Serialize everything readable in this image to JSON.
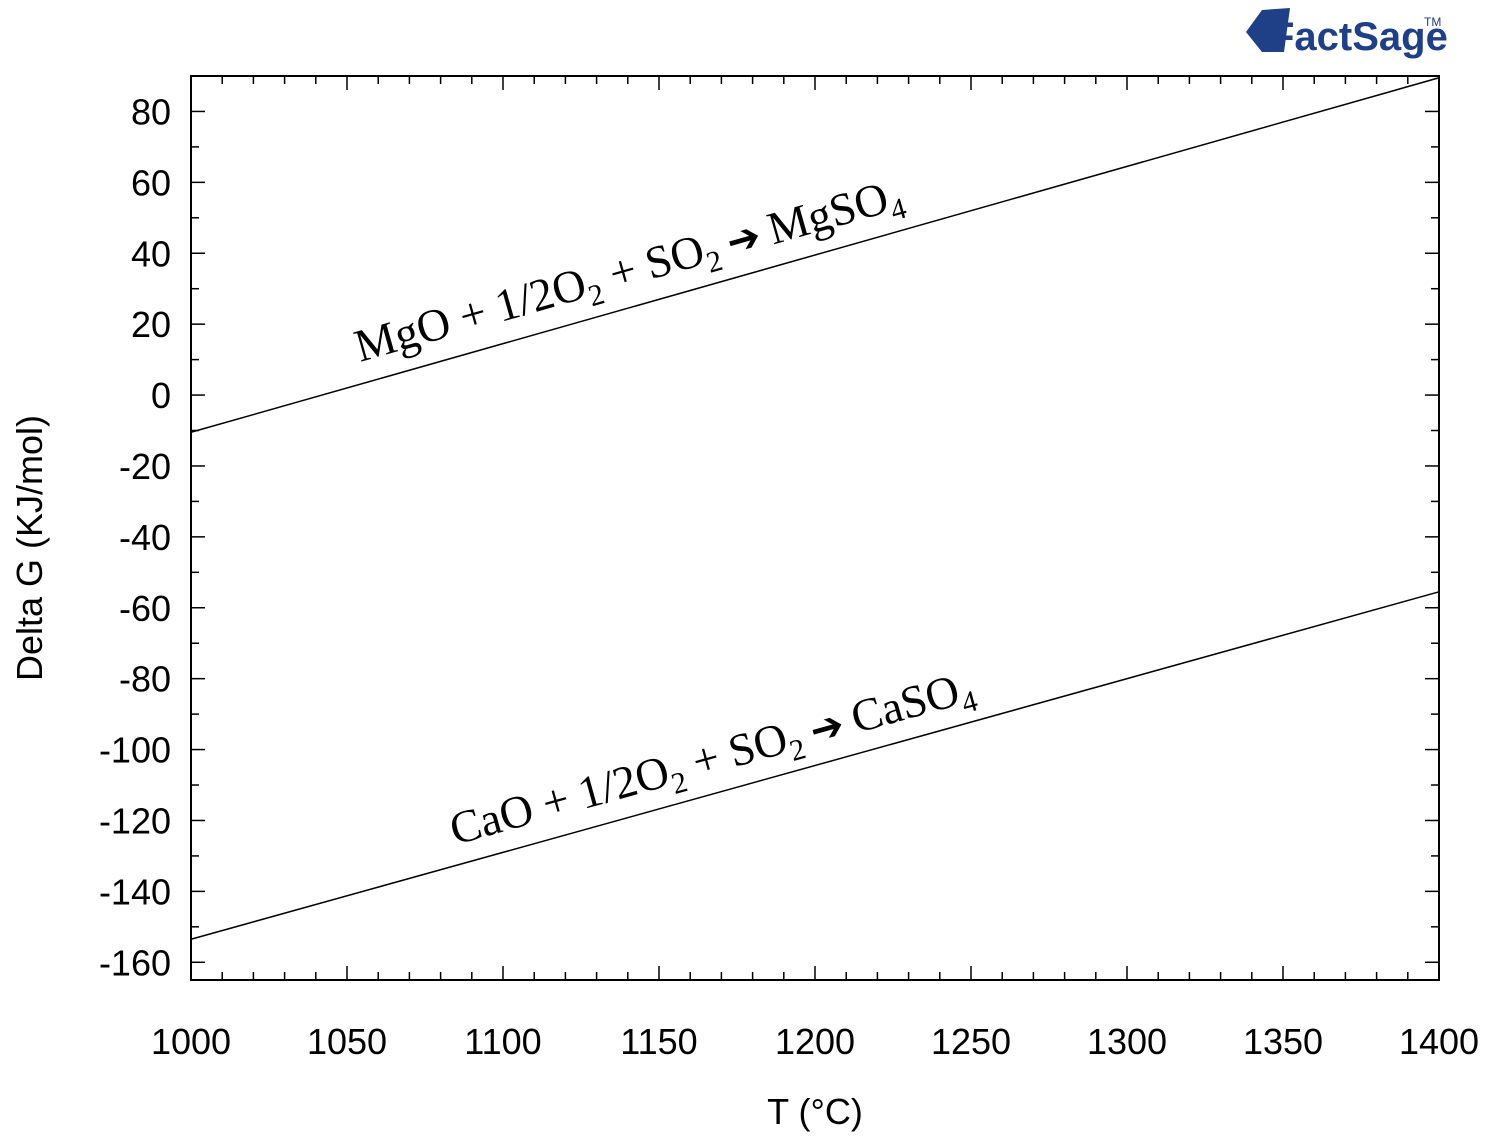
{
  "chart_data": {
    "type": "line",
    "xlabel": "T (°C)",
    "ylabel": "Delta G (KJ/mol)",
    "xlim": [
      1000,
      1400
    ],
    "ylim": [
      -165,
      90
    ],
    "xticks": [
      1000,
      1050,
      1100,
      1150,
      1200,
      1250,
      1300,
      1350,
      1400
    ],
    "yticks": [
      80,
      60,
      40,
      20,
      0,
      -20,
      -40,
      -60,
      -80,
      -100,
      -120,
      -140,
      -160
    ],
    "grid": false,
    "series": [
      {
        "name": "MgO + 1/2O2 + SO2 ➔ MgSO4",
        "x": [
          1000,
          1400
        ],
        "y": [
          -10.5,
          89.5
        ],
        "label": {
          "main": "MgO + 1/2O",
          "sub1": "2",
          "mid": " + SO",
          "sub2": "2",
          "arrow": "➔",
          "product": "MgSO",
          "sub3": "4"
        }
      },
      {
        "name": "CaO + 1/2O2 + SO2 ➔ CaSO4",
        "x": [
          1000,
          1400
        ],
        "y": [
          -153.5,
          -55.5
        ],
        "label": {
          "main": "CaO + 1/2O",
          "sub1": "2",
          "mid": " + SO",
          "sub2": "2",
          "arrow": "➔",
          "product": "CaSO",
          "sub3": "4"
        }
      }
    ]
  },
  "logo": {
    "text": "FactSage",
    "tm": "TM"
  }
}
